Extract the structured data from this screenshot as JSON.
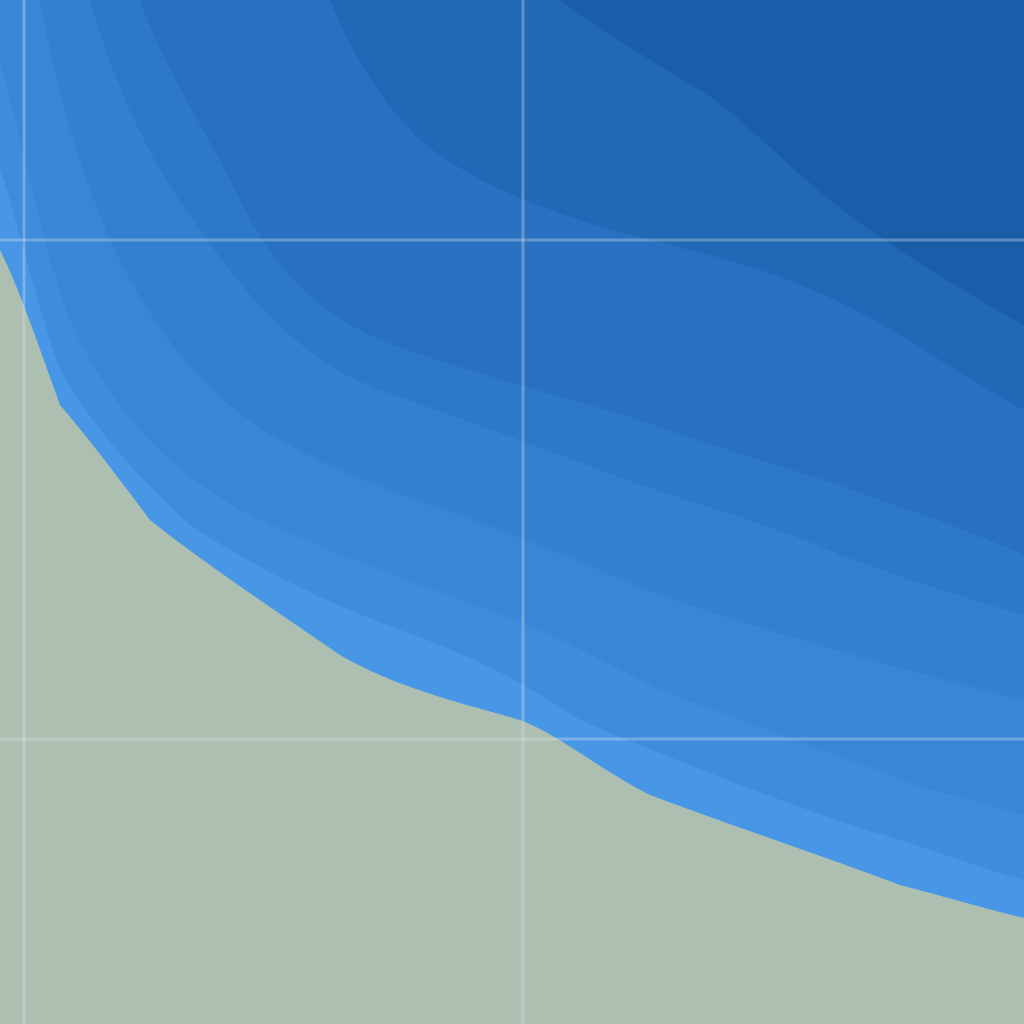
{
  "map": {
    "colors": {
      "land": "#adbfb0",
      "water_deepest": "#1a5ea9",
      "water_deep": "#2168b6",
      "water_mid1": "#2771c0",
      "water_mid2": "#2d79c8",
      "water_mid3": "#3280cf",
      "water_shallow1": "#3887d6",
      "water_shallow2": "#3e8ddc",
      "water_shallowest": "#4897e6",
      "grid_line": "#d6e2ea",
      "grid_line_opacity": "0.35"
    },
    "layers": [
      "land",
      "water",
      "depth-contours",
      "graticule"
    ]
  }
}
